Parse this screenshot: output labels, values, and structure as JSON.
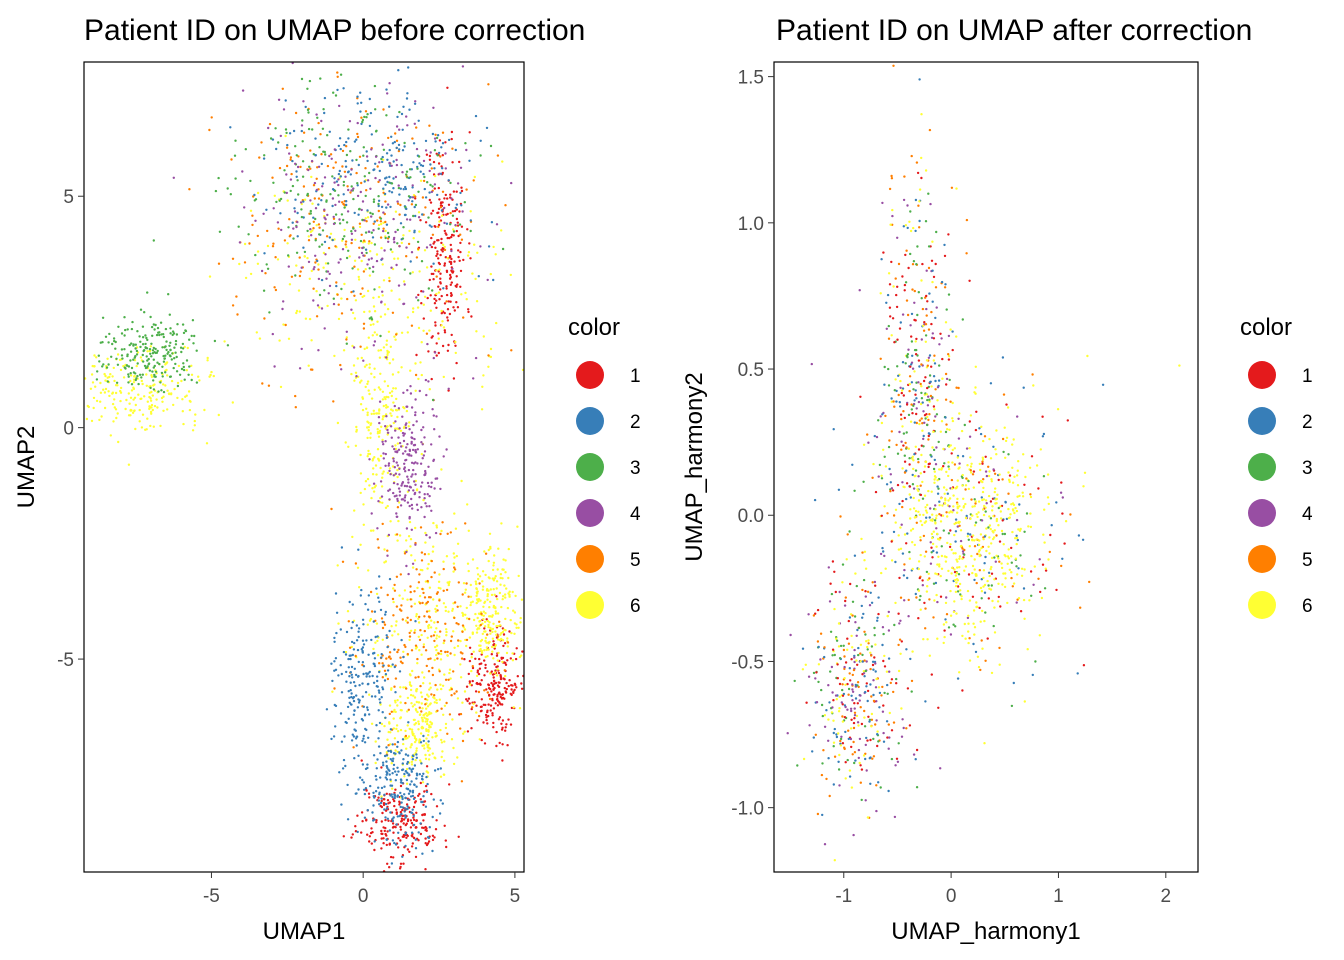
{
  "chart_data": [
    {
      "type": "scatter",
      "title": "Patient ID on UMAP before correction",
      "xlabel": "UMAP1",
      "ylabel": "UMAP2",
      "xlim": [
        -9.2,
        5.3
      ],
      "ylim": [
        -9.6,
        7.9
      ],
      "xticks": [
        -5,
        0,
        5
      ],
      "xtick_labels": [
        "-5",
        "0",
        "5"
      ],
      "yticks": [
        -5,
        0,
        5
      ],
      "ytick_labels": [
        "-5",
        "0",
        "5"
      ],
      "grid": false,
      "legend": {
        "title": "color",
        "position": "right"
      },
      "series": [
        {
          "name": "1",
          "color": "#e41a1c"
        },
        {
          "name": "2",
          "color": "#377eb8"
        },
        {
          "name": "3",
          "color": "#4daf4a"
        },
        {
          "name": "4",
          "color": "#984ea3"
        },
        {
          "name": "5",
          "color": "#ff7f00"
        },
        {
          "name": "6",
          "color": "#ffff33"
        }
      ],
      "regions": [
        {
          "series": "1",
          "x": 2.7,
          "y": 3.8,
          "spread": [
            0.35,
            1.3
          ]
        },
        {
          "series": "1",
          "x": 1.2,
          "y": -8.5,
          "spread": [
            0.7,
            0.45
          ]
        },
        {
          "series": "1",
          "x": 4.3,
          "y": -5.5,
          "spread": [
            0.4,
            0.6
          ]
        },
        {
          "series": "6",
          "x": 0.5,
          "y": 3.3,
          "spread": [
            2.2,
            1.2
          ]
        },
        {
          "series": "6",
          "x": 2.2,
          "y": -4.2,
          "spread": [
            1.2,
            1.2
          ]
        },
        {
          "series": "6",
          "x": -7.3,
          "y": 0.8,
          "spread": [
            1.0,
            0.5
          ]
        },
        {
          "series": "6",
          "x": 0.6,
          "y": 0.0,
          "spread": [
            0.5,
            1.2
          ]
        },
        {
          "series": "6",
          "x": 4.2,
          "y": -4.0,
          "spread": [
            0.5,
            0.7
          ]
        },
        {
          "series": "6",
          "x": 1.8,
          "y": -6.5,
          "spread": [
            0.6,
            0.6
          ]
        },
        {
          "series": "5",
          "x": -0.5,
          "y": 4.5,
          "spread": [
            2.0,
            1.5
          ]
        },
        {
          "series": "5",
          "x": 2.0,
          "y": -4.5,
          "spread": [
            1.3,
            1.2
          ]
        },
        {
          "series": "2",
          "x": 0.0,
          "y": -5.5,
          "spread": [
            0.5,
            1.0
          ]
        },
        {
          "series": "2",
          "x": 1.2,
          "y": -7.8,
          "spread": [
            0.6,
            0.6
          ]
        },
        {
          "series": "2",
          "x": 0.5,
          "y": 5.5,
          "spread": [
            1.5,
            1.0
          ]
        },
        {
          "series": "3",
          "x": -0.8,
          "y": 5.0,
          "spread": [
            2.0,
            1.3
          ]
        },
        {
          "series": "3",
          "x": -7.0,
          "y": 1.6,
          "spread": [
            0.8,
            0.4
          ]
        },
        {
          "series": "4",
          "x": 1.5,
          "y": -0.8,
          "spread": [
            0.5,
            0.8
          ]
        },
        {
          "series": "4",
          "x": 0.0,
          "y": 4.5,
          "spread": [
            2.0,
            1.5
          ]
        }
      ]
    },
    {
      "type": "scatter",
      "title": "Patient ID on UMAP after correction",
      "xlabel": "UMAP_harmony1",
      "ylabel": "UMAP_harmony2",
      "xlim": [
        -1.65,
        2.3
      ],
      "ylim": [
        -1.22,
        1.55
      ],
      "xticks": [
        -1,
        0,
        1,
        2
      ],
      "xtick_labels": [
        "-1",
        "0",
        "1",
        "2"
      ],
      "yticks": [
        -1.0,
        -0.5,
        0.0,
        0.5,
        1.0,
        1.5
      ],
      "ytick_labels": [
        "-1.0",
        "-0.5",
        "0.0",
        "0.5",
        "1.0",
        "1.5"
      ],
      "grid": false,
      "legend": {
        "title": "color",
        "position": "right"
      },
      "series": [
        {
          "name": "1",
          "color": "#e41a1c"
        },
        {
          "name": "2",
          "color": "#377eb8"
        },
        {
          "name": "3",
          "color": "#4daf4a"
        },
        {
          "name": "4",
          "color": "#984ea3"
        },
        {
          "name": "5",
          "color": "#ff7f00"
        },
        {
          "name": "6",
          "color": "#ffff33"
        }
      ],
      "regions": [
        {
          "series": "mixed",
          "x": -0.3,
          "y": 0.5,
          "spread": [
            0.18,
            0.35
          ]
        },
        {
          "series": "mixed",
          "x": 0.1,
          "y": -0.05,
          "spread": [
            0.5,
            0.25
          ]
        },
        {
          "series": "mixed",
          "x": -0.9,
          "y": -0.6,
          "spread": [
            0.25,
            0.2
          ]
        },
        {
          "series": "6",
          "x": 0.2,
          "y": -0.05,
          "spread": [
            0.35,
            0.2
          ]
        }
      ]
    }
  ]
}
